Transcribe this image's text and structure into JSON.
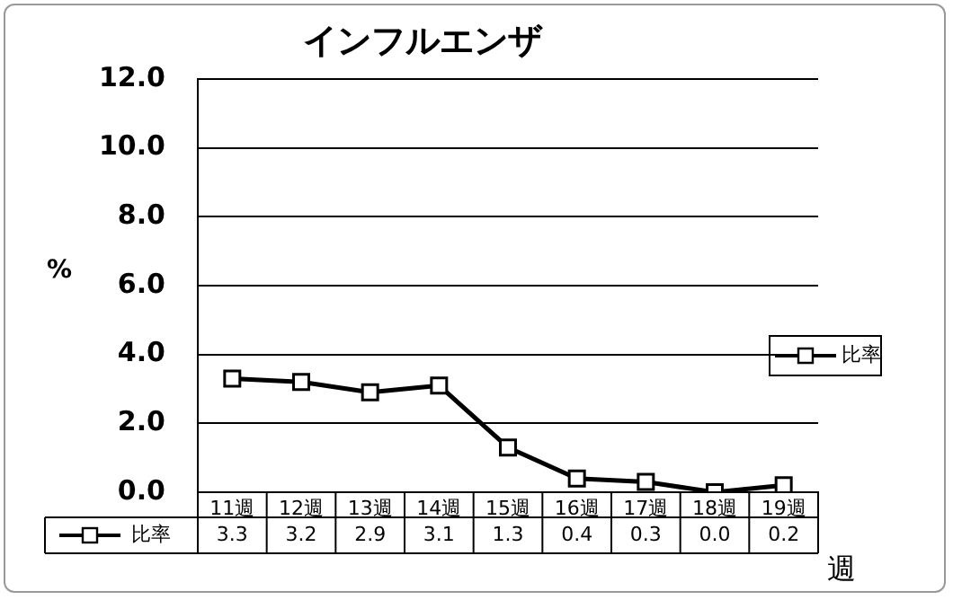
{
  "chart_data": {
    "type": "line",
    "title": "インフルエンザ",
    "xlabel": "週",
    "ylabel": "%",
    "categories": [
      "11週",
      "12週",
      "13週",
      "14週",
      "15週",
      "16週",
      "17週",
      "18週",
      "19週"
    ],
    "series": [
      {
        "name": "比率",
        "color": "#000000",
        "values": [
          3.3,
          3.2,
          2.9,
          3.1,
          1.3,
          0.4,
          0.3,
          0.0,
          0.2
        ],
        "value_labels": [
          "3.3",
          "3.2",
          "2.9",
          "3.1",
          "1.3",
          "0.4",
          "0.3",
          "0.0",
          "0.2"
        ]
      }
    ],
    "ylim": [
      0,
      12
    ],
    "yticks": [
      {
        "value": 0,
        "label": "0.0"
      },
      {
        "value": 2,
        "label": "2.0"
      },
      {
        "value": 4,
        "label": "4.0"
      },
      {
        "value": 6,
        "label": "6.0"
      },
      {
        "value": 8,
        "label": "8.0"
      },
      {
        "value": 10,
        "label": "10.0"
      },
      {
        "value": 12,
        "label": "12.0"
      }
    ],
    "grid": "y",
    "legend": "right",
    "marker": "square",
    "line_style": "solid"
  }
}
